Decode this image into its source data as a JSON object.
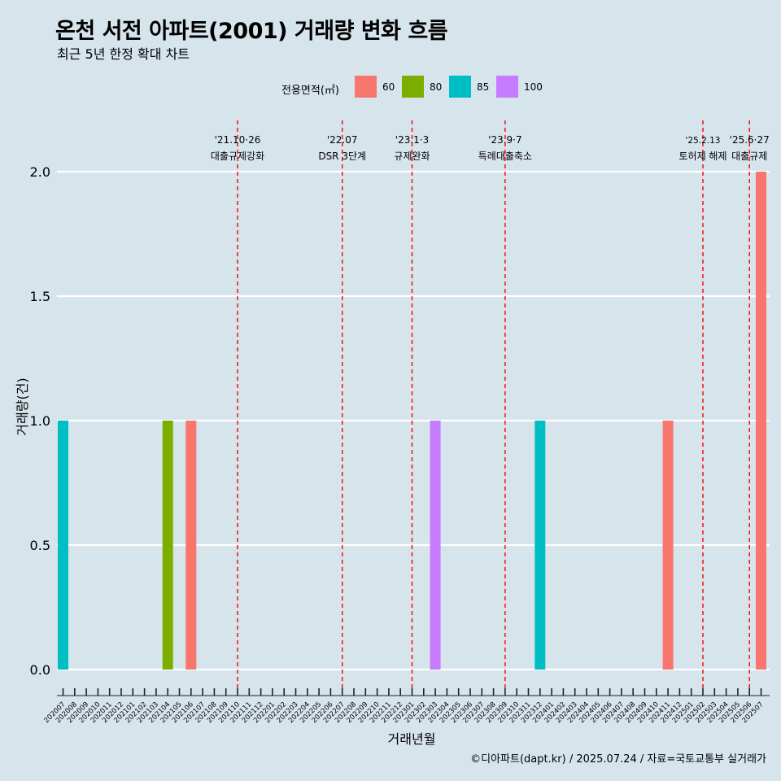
{
  "chart_data": {
    "type": "bar",
    "title": "온천 서전 아파트(2001) 거래량 변화 흐름",
    "subtitle": "최근 5년 한정 확대 차트",
    "xlabel": "거래년월",
    "ylabel": "거래량(건)",
    "ylim": [
      0,
      2.0
    ],
    "yticks": [
      "0.0",
      "0.5",
      "1.0",
      "1.5",
      "2.0"
    ],
    "grid": true,
    "legend_position": "top",
    "legend": {
      "title": "전용면적(㎡)",
      "items": [
        {
          "label": "60",
          "color": "#f8766d"
        },
        {
          "label": "80",
          "color": "#7cae00"
        },
        {
          "label": "85",
          "color": "#00bfc4"
        },
        {
          "label": "100",
          "color": "#c77cff"
        }
      ]
    },
    "categories": [
      "202007",
      "202008",
      "202009",
      "202010",
      "202011",
      "202012",
      "202101",
      "202102",
      "202103",
      "202104",
      "202105",
      "202106",
      "202107",
      "202108",
      "202109",
      "202110",
      "202111",
      "202112",
      "202201",
      "202202",
      "202203",
      "202204",
      "202205",
      "202206",
      "202207",
      "202208",
      "202209",
      "202210",
      "202211",
      "202212",
      "202301",
      "202302",
      "202303",
      "202304",
      "202305",
      "202306",
      "202307",
      "202308",
      "202309",
      "202310",
      "202311",
      "202312",
      "202401",
      "202402",
      "202403",
      "202404",
      "202405",
      "202406",
      "202407",
      "202408",
      "202409",
      "202410",
      "202411",
      "202412",
      "202501",
      "202502",
      "202503",
      "202504",
      "202505",
      "202506",
      "202507"
    ],
    "bars": [
      {
        "x": "202007",
        "series": "85",
        "value": 1
      },
      {
        "x": "202104",
        "series": "80",
        "value": 1
      },
      {
        "x": "202106",
        "series": "60",
        "value": 1
      },
      {
        "x": "202303",
        "series": "100",
        "value": 1
      },
      {
        "x": "202312",
        "series": "85",
        "value": 1
      },
      {
        "x": "202411",
        "series": "60",
        "value": 1
      },
      {
        "x": "202507",
        "series": "60",
        "value": 2
      }
    ],
    "events": [
      {
        "x": "202110",
        "date": "'21.10·26",
        "label": "대출규제강화"
      },
      {
        "x": "202207",
        "date": "'22.07",
        "label": "DSR 3단계"
      },
      {
        "x": "202301",
        "date": "'23.1·3",
        "label": "규제완화"
      },
      {
        "x": "202309",
        "date": "'23.9·7",
        "label": "특례대출축소"
      },
      {
        "x": "202502",
        "date": "'25.2.13",
        "label": "토허제 해제"
      },
      {
        "x": "202506",
        "date": "'25.6·27",
        "label": "대출규제"
      }
    ],
    "event_color": "#ff0000",
    "caption": "©디아파트(dapt.kr) / 2025.07.24 / 자료=국토교통부 실거래가"
  }
}
